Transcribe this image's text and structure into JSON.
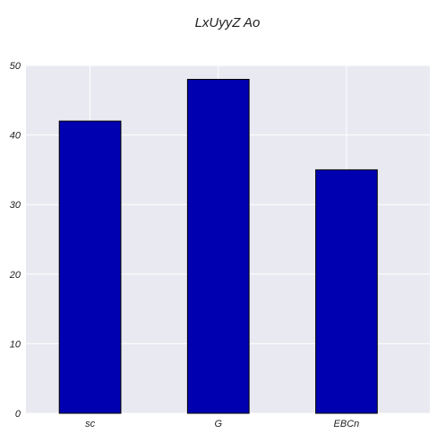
{
  "colors": {
    "background": "#ffffff",
    "plot_background": "#e9e9f1",
    "grid": "#ffffff",
    "bar_fill": "#0000b0",
    "bar_edge": "#000000",
    "text": "#222222"
  },
  "chart_data": {
    "type": "bar",
    "title": "LxUyyZ Ao",
    "xlabel": "",
    "ylabel": "",
    "categories": [
      "sc",
      "G",
      "EBCn"
    ],
    "values": [
      42,
      48,
      35
    ],
    "ylim": [
      0,
      50
    ],
    "yticks": [
      0,
      10,
      20,
      30,
      40,
      50
    ],
    "grid": true,
    "legend": "none"
  }
}
